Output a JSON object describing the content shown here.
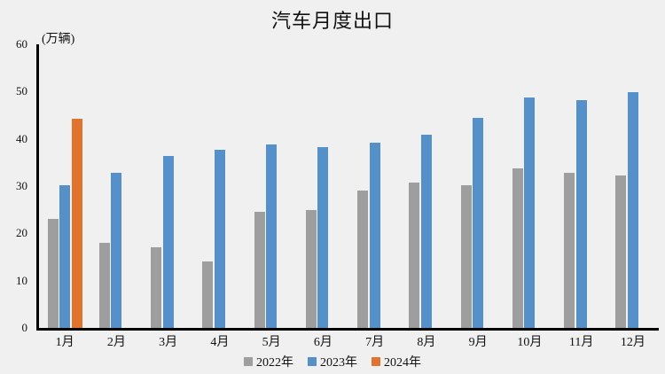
{
  "chart_data": {
    "type": "bar",
    "title": "汽车月度出口",
    "unit_label": "(万辆)",
    "categories": [
      "1月",
      "2月",
      "3月",
      "4月",
      "5月",
      "6月",
      "7月",
      "8月",
      "9月",
      "10月",
      "11月",
      "12月"
    ],
    "series": [
      {
        "name": "2022年",
        "color": "#9E9E9E",
        "values": [
          23.1,
          18.0,
          17.0,
          14.1,
          24.5,
          24.9,
          29.0,
          30.8,
          30.1,
          33.7,
          32.9,
          32.3
        ]
      },
      {
        "name": "2023年",
        "color": "#5591C8",
        "values": [
          30.1,
          32.9,
          36.4,
          37.6,
          38.9,
          38.2,
          39.2,
          40.8,
          44.4,
          48.8,
          48.2,
          49.9
        ]
      },
      {
        "name": "2024年",
        "color": "#E0732D",
        "values": [
          44.3,
          null,
          null,
          null,
          null,
          null,
          null,
          null,
          null,
          null,
          null,
          null
        ]
      }
    ],
    "ylim": [
      0,
      60
    ],
    "yticks": [
      0,
      10,
      20,
      30,
      40,
      50,
      60
    ],
    "grid": false,
    "legend_position": "bottom",
    "background": "#F0F0F0",
    "axis_color": "#000000"
  }
}
